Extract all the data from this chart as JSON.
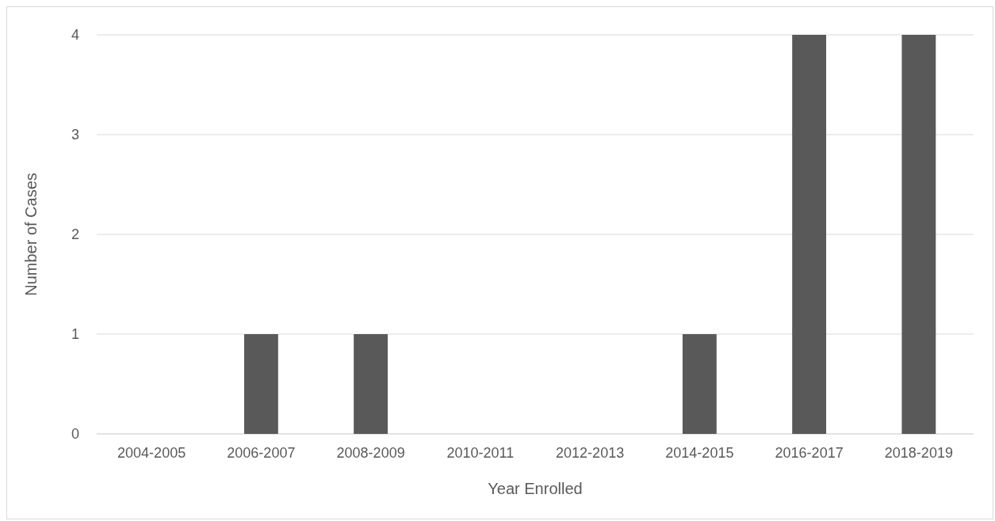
{
  "chart_data": {
    "type": "bar",
    "xlabel": "Year Enrolled",
    "ylabel": "Number of Cases",
    "categories": [
      "2004-2005",
      "2006-2007",
      "2008-2009",
      "2010-2011",
      "2012-2013",
      "2014-2015",
      "2016-2017",
      "2018-2019"
    ],
    "values": [
      0,
      1,
      1,
      0,
      0,
      1,
      4,
      4
    ],
    "color": "#595959",
    "ylim": [
      0,
      4
    ],
    "yticks": [
      0,
      1,
      2,
      3,
      4
    ],
    "grid": "y"
  }
}
